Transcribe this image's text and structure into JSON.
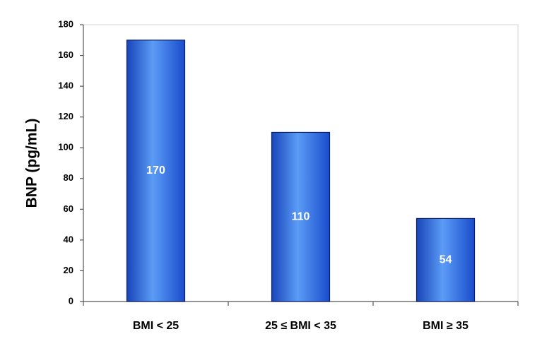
{
  "chart_data": {
    "type": "bar",
    "y_label": "BNP (pg/mL)",
    "categories": [
      "BMI < 25",
      "25 ≤ BMI < 35",
      "BMI ≥ 35"
    ],
    "values": [
      170,
      110,
      54
    ],
    "color": "#2f6fe0",
    "ylim": [
      0,
      180
    ],
    "yticks": [
      0,
      20,
      40,
      60,
      80,
      100,
      120,
      140,
      160,
      180
    ],
    "grid": false
  }
}
